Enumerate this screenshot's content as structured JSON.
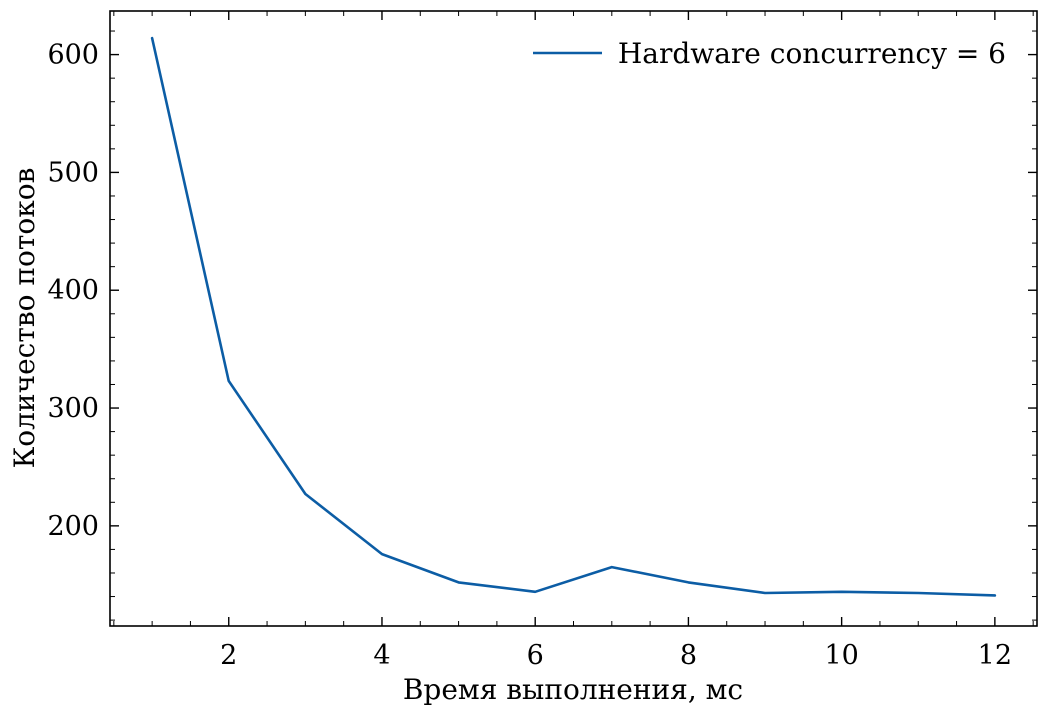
{
  "chart_data": {
    "type": "line",
    "title": "",
    "xlabel": "Время выполнения, мс",
    "ylabel": "Количество потоков",
    "xlim": [
      0.45,
      12.55
    ],
    "ylim": [
      115,
      637
    ],
    "x_ticks": [
      2,
      4,
      6,
      8,
      10,
      12
    ],
    "y_ticks": [
      200,
      300,
      400,
      500,
      600
    ],
    "x_tick_labels": [
      "2",
      "4",
      "6",
      "8",
      "10",
      "12"
    ],
    "y_tick_labels": [
      "200",
      "300",
      "400",
      "500",
      "600"
    ],
    "grid": false,
    "legend_position": "top-right",
    "series": [
      {
        "name": "Hardware concurrency = 6",
        "color": "#0c5da5",
        "x": [
          1,
          2,
          3,
          4,
          5,
          6,
          7,
          8,
          9,
          10,
          11,
          12
        ],
        "y": [
          614,
          323,
          227,
          176,
          152,
          144,
          165,
          152,
          143,
          144,
          143,
          141
        ]
      }
    ]
  }
}
